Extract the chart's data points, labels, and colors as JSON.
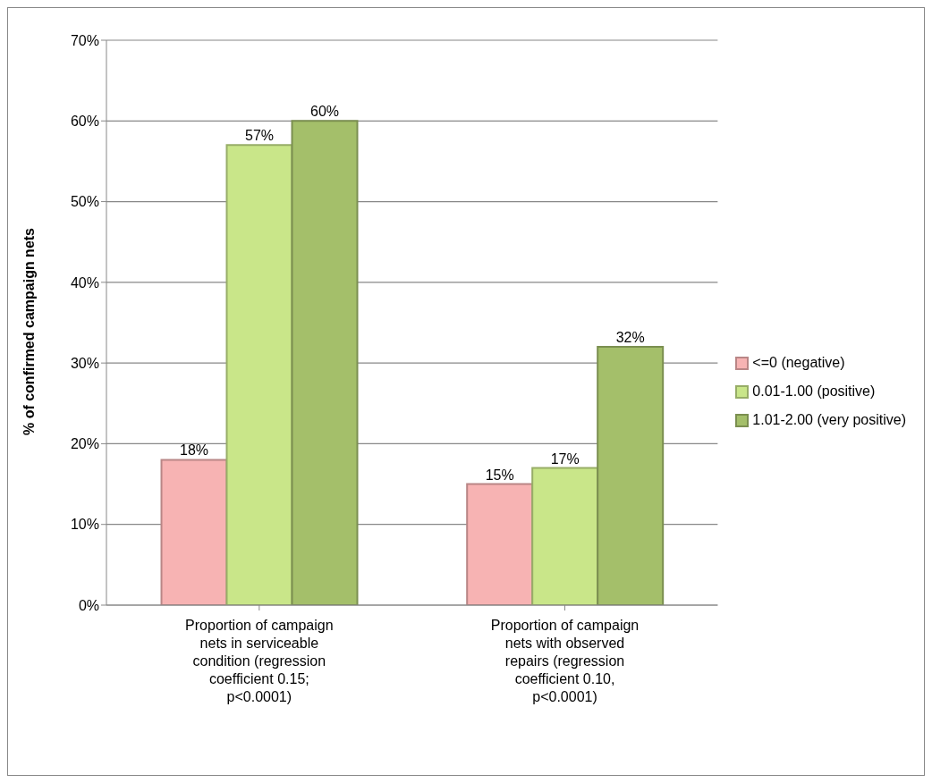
{
  "chart_data": {
    "type": "bar",
    "ylabel": "% of confirmed campaign nets",
    "categories": [
      "Proportion of campaign nets in serviceable condition (regression coefficient 0.15; p<0.0001)",
      "Proportion of campaign nets with observed repairs (regression coefficient 0.10, p<0.0001)"
    ],
    "series": [
      {
        "name": "<=0 (negative)",
        "color": "#f7b3b3",
        "values": [
          18,
          15
        ],
        "value_labels": [
          "18%",
          "15%"
        ]
      },
      {
        "name": "0.01-1.00 (positive)",
        "color": "#c9e689",
        "values": [
          57,
          17
        ],
        "value_labels": [
          "57%",
          "17%"
        ]
      },
      {
        "name": "1.01-2.00 (very positive)",
        "color": "#a4bf6a",
        "values": [
          60,
          32
        ],
        "value_labels": [
          "60%",
          "32%"
        ]
      }
    ],
    "ylim": [
      0,
      70
    ],
    "yticks": [
      {
        "value": 0,
        "label": "0%"
      },
      {
        "value": 10,
        "label": "10%"
      },
      {
        "value": 20,
        "label": "20%"
      },
      {
        "value": 30,
        "label": "30%"
      },
      {
        "value": 40,
        "label": "40%"
      },
      {
        "value": 50,
        "label": "50%"
      },
      {
        "value": 60,
        "label": "60%"
      },
      {
        "value": 70,
        "label": "70%"
      }
    ],
    "grid": "y",
    "legend": "right"
  }
}
